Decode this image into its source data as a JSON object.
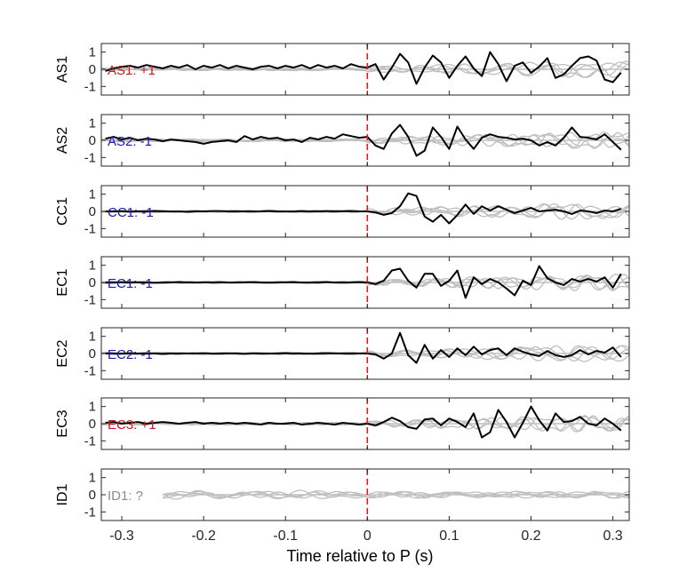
{
  "chart_data": {
    "type": "line",
    "xlabel": "Time relative to P (s)",
    "xlim": [
      -0.325,
      0.32
    ],
    "x_ticks": [
      -0.3,
      -0.2,
      -0.1,
      0,
      0.1,
      0.2,
      0.3
    ],
    "x_tick_labels": [
      "-0.3",
      "-0.2",
      "-0.1",
      "0",
      "0.1",
      "0.2",
      "0.3"
    ],
    "ylim": [
      -1.5,
      1.5
    ],
    "y_ticks": [
      1,
      0,
      -1
    ],
    "y_tick_labels": [
      "1",
      "0",
      "-1"
    ],
    "marker_x": 0,
    "colors": {
      "trace": "#000000",
      "background_traces": "#bfbfbf",
      "marker": "#e8191a",
      "plus": "#c0201e",
      "minus": "#1c1ca8",
      "unknown": "#8c8c8c"
    },
    "panels": [
      {
        "ylabel": "AS1",
        "label": "AS1: +1",
        "polarity": "plus",
        "x": [
          -0.32,
          -0.31,
          -0.3,
          -0.29,
          -0.28,
          -0.27,
          -0.26,
          -0.25,
          -0.24,
          -0.23,
          -0.22,
          -0.21,
          -0.2,
          -0.19,
          -0.18,
          -0.17,
          -0.16,
          -0.15,
          -0.14,
          -0.13,
          -0.12,
          -0.11,
          -0.1,
          -0.09,
          -0.08,
          -0.07,
          -0.06,
          -0.05,
          -0.04,
          -0.03,
          -0.02,
          -0.01,
          0,
          0.01,
          0.02,
          0.03,
          0.04,
          0.05,
          0.06,
          0.07,
          0.08,
          0.09,
          0.1,
          0.11,
          0.12,
          0.13,
          0.14,
          0.15,
          0.16,
          0.17,
          0.18,
          0.19,
          0.2,
          0.21,
          0.22,
          0.23,
          0.24,
          0.25,
          0.26,
          0.27,
          0.28,
          0.29,
          0.3,
          0.31
        ],
        "y": [
          -0.1,
          0.05,
          0.15,
          0.2,
          0.1,
          0.25,
          0.15,
          0.05,
          0.2,
          0.1,
          0.25,
          0.0,
          0.2,
          0.1,
          0.25,
          0.05,
          0.2,
          0.1,
          0.0,
          0.15,
          0.2,
          0.05,
          0.2,
          0.1,
          0.25,
          0.05,
          0.25,
          0.1,
          0.2,
          0.05,
          0.3,
          0.15,
          0.1,
          0.3,
          -0.6,
          0.1,
          0.9,
          0.4,
          -0.85,
          0.1,
          0.8,
          0.4,
          -0.5,
          0.2,
          0.75,
          0.05,
          -0.4,
          1.0,
          0.3,
          -0.7,
          0.2,
          0.4,
          -0.2,
          0.15,
          0.65,
          -0.5,
          -0.3,
          0.2,
          0.65,
          0.75,
          0.5,
          -0.6,
          -0.75,
          -0.2
        ]
      },
      {
        "ylabel": "AS2",
        "label": "AS2: -1",
        "polarity": "minus",
        "x": [
          -0.32,
          -0.31,
          -0.3,
          -0.29,
          -0.28,
          -0.27,
          -0.26,
          -0.25,
          -0.24,
          -0.23,
          -0.22,
          -0.21,
          -0.2,
          -0.19,
          -0.18,
          -0.17,
          -0.16,
          -0.15,
          -0.14,
          -0.13,
          -0.12,
          -0.11,
          -0.1,
          -0.09,
          -0.08,
          -0.07,
          -0.06,
          -0.05,
          -0.04,
          -0.03,
          -0.02,
          -0.01,
          0,
          0.01,
          0.02,
          0.03,
          0.04,
          0.05,
          0.06,
          0.07,
          0.08,
          0.09,
          0.1,
          0.11,
          0.12,
          0.13,
          0.14,
          0.15,
          0.16,
          0.17,
          0.18,
          0.19,
          0.2,
          0.21,
          0.22,
          0.23,
          0.24,
          0.25,
          0.26,
          0.27,
          0.28,
          0.29,
          0.3,
          0.31
        ],
        "y": [
          0.1,
          0.2,
          0.05,
          0.15,
          0.0,
          0.1,
          0.05,
          -0.05,
          0.05,
          0.0,
          -0.05,
          -0.1,
          -0.2,
          -0.1,
          -0.05,
          0.0,
          -0.1,
          0.25,
          0.05,
          0.2,
          0.1,
          0.15,
          0.0,
          0.05,
          -0.1,
          0.15,
          0.05,
          0.2,
          0.1,
          0.35,
          0.25,
          0.15,
          0.2,
          -0.3,
          -0.5,
          0.4,
          0.9,
          0.2,
          -0.9,
          -0.6,
          0.75,
          0.2,
          -0.5,
          0.8,
          0.05,
          -0.5,
          0.15,
          0.35,
          0.2,
          0.15,
          0.05,
          0.1,
          0.0,
          -0.3,
          -0.1,
          -0.3,
          0.15,
          0.75,
          0.2,
          0.15,
          0.05,
          0.35,
          -0.1,
          -0.55
        ]
      },
      {
        "ylabel": "CC1",
        "label": "CC1: -1",
        "polarity": "minus",
        "x": [
          -0.32,
          -0.31,
          -0.3,
          -0.29,
          -0.28,
          -0.27,
          -0.26,
          -0.25,
          -0.24,
          -0.23,
          -0.22,
          -0.21,
          -0.2,
          -0.19,
          -0.18,
          -0.17,
          -0.16,
          -0.15,
          -0.14,
          -0.13,
          -0.12,
          -0.11,
          -0.1,
          -0.09,
          -0.08,
          -0.07,
          -0.06,
          -0.05,
          -0.04,
          -0.03,
          -0.02,
          -0.01,
          0,
          0.01,
          0.02,
          0.03,
          0.04,
          0.05,
          0.06,
          0.07,
          0.08,
          0.09,
          0.1,
          0.11,
          0.12,
          0.13,
          0.14,
          0.15,
          0.16,
          0.17,
          0.18,
          0.19,
          0.2,
          0.21,
          0.22,
          0.23,
          0.24,
          0.25,
          0.26,
          0.27,
          0.28,
          0.29,
          0.3,
          0.31
        ],
        "y": [
          0.0,
          0.0,
          0.0,
          -0.02,
          0.0,
          0.0,
          0.02,
          0.0,
          0.0,
          0.0,
          -0.02,
          0.0,
          0.0,
          0.02,
          0.02,
          0.0,
          0.0,
          0.0,
          0.0,
          0.0,
          0.02,
          0.0,
          0.0,
          0.0,
          0.02,
          0.0,
          0.0,
          0.02,
          0.0,
          0.0,
          0.02,
          0.0,
          0.0,
          -0.05,
          -0.2,
          -0.1,
          0.3,
          1.05,
          0.9,
          -0.3,
          -0.6,
          -0.2,
          -0.7,
          -0.2,
          0.4,
          -0.15,
          0.3,
          0.05,
          0.3,
          0.1,
          -0.1,
          0.05,
          0.2,
          0.0,
          0.05,
          0.1,
          0.0,
          -0.15,
          0.05,
          0.0,
          -0.1,
          0.05,
          0.0,
          0.15
        ]
      },
      {
        "ylabel": "EC1",
        "label": "EC1: -1",
        "polarity": "minus",
        "x": [
          -0.32,
          -0.31,
          -0.3,
          -0.29,
          -0.28,
          -0.27,
          -0.26,
          -0.25,
          -0.24,
          -0.23,
          -0.22,
          -0.21,
          -0.2,
          -0.19,
          -0.18,
          -0.17,
          -0.16,
          -0.15,
          -0.14,
          -0.13,
          -0.12,
          -0.11,
          -0.1,
          -0.09,
          -0.08,
          -0.07,
          -0.06,
          -0.05,
          -0.04,
          -0.03,
          -0.02,
          -0.01,
          0,
          0.01,
          0.02,
          0.03,
          0.04,
          0.05,
          0.06,
          0.07,
          0.08,
          0.09,
          0.1,
          0.11,
          0.12,
          0.13,
          0.14,
          0.15,
          0.16,
          0.17,
          0.18,
          0.19,
          0.2,
          0.21,
          0.22,
          0.23,
          0.24,
          0.25,
          0.26,
          0.27,
          0.28,
          0.29,
          0.3,
          0.31
        ],
        "y": [
          0.0,
          0.0,
          0.02,
          0.0,
          0.0,
          0.0,
          -0.02,
          0.0,
          0.0,
          0.02,
          0.0,
          0.0,
          0.0,
          0.0,
          0.02,
          0.0,
          0.0,
          0.0,
          0.02,
          0.0,
          0.0,
          0.0,
          0.0,
          0.02,
          0.0,
          0.0,
          0.0,
          0.02,
          0.0,
          0.0,
          0.0,
          0.02,
          0.0,
          -0.1,
          0.1,
          0.7,
          0.8,
          0.1,
          -0.3,
          0.5,
          0.5,
          -0.2,
          0.1,
          0.7,
          -0.9,
          0.3,
          -0.1,
          0.2,
          0.0,
          -0.35,
          -0.75,
          0.1,
          -0.15,
          0.95,
          0.25,
          0.0,
          -0.15,
          0.2,
          0.05,
          0.2,
          0.05,
          0.3,
          -0.3,
          0.5
        ]
      },
      {
        "ylabel": "EC2",
        "label": "EC2: -1",
        "polarity": "minus",
        "x": [
          -0.32,
          -0.31,
          -0.3,
          -0.29,
          -0.28,
          -0.27,
          -0.26,
          -0.25,
          -0.24,
          -0.23,
          -0.22,
          -0.21,
          -0.2,
          -0.19,
          -0.18,
          -0.17,
          -0.16,
          -0.15,
          -0.14,
          -0.13,
          -0.12,
          -0.11,
          -0.1,
          -0.09,
          -0.08,
          -0.07,
          -0.06,
          -0.05,
          -0.04,
          -0.03,
          -0.02,
          -0.01,
          0,
          0.01,
          0.02,
          0.03,
          0.04,
          0.05,
          0.06,
          0.07,
          0.08,
          0.09,
          0.1,
          0.11,
          0.12,
          0.13,
          0.14,
          0.15,
          0.16,
          0.17,
          0.18,
          0.19,
          0.2,
          0.21,
          0.22,
          0.23,
          0.24,
          0.25,
          0.26,
          0.27,
          0.28,
          0.29,
          0.3,
          0.31
        ],
        "y": [
          0.0,
          0.0,
          0.0,
          0.02,
          0.0,
          0.0,
          0.0,
          -0.02,
          0.0,
          0.0,
          0.0,
          0.0,
          0.02,
          0.0,
          0.0,
          0.0,
          0.0,
          -0.02,
          0.0,
          0.0,
          0.0,
          0.0,
          0.02,
          0.0,
          0.0,
          0.0,
          0.0,
          0.02,
          0.0,
          0.0,
          0.0,
          0.0,
          0.0,
          -0.05,
          -0.3,
          0.0,
          1.2,
          -0.1,
          -0.55,
          0.5,
          -0.3,
          0.2,
          -0.2,
          0.3,
          -0.1,
          0.4,
          -0.05,
          0.2,
          0.3,
          -0.1,
          0.3,
          0.1,
          -0.05,
          -0.15,
          0.15,
          -0.1,
          -0.2,
          -0.1,
          0.2,
          -0.05,
          0.15,
          0.05,
          0.35,
          -0.2
        ]
      },
      {
        "ylabel": "EC3",
        "label": "EC3: +1",
        "polarity": "plus",
        "x": [
          -0.32,
          -0.31,
          -0.3,
          -0.29,
          -0.28,
          -0.27,
          -0.26,
          -0.25,
          -0.24,
          -0.23,
          -0.22,
          -0.21,
          -0.2,
          -0.19,
          -0.18,
          -0.17,
          -0.16,
          -0.15,
          -0.14,
          -0.13,
          -0.12,
          -0.11,
          -0.1,
          -0.09,
          -0.08,
          -0.07,
          -0.06,
          -0.05,
          -0.04,
          -0.03,
          -0.02,
          -0.01,
          0,
          0.01,
          0.02,
          0.03,
          0.04,
          0.05,
          0.06,
          0.07,
          0.08,
          0.09,
          0.1,
          0.11,
          0.12,
          0.13,
          0.14,
          0.15,
          0.16,
          0.17,
          0.18,
          0.19,
          0.2,
          0.21,
          0.22,
          0.23,
          0.24,
          0.25,
          0.26,
          0.27,
          0.28,
          0.29,
          0.3,
          0.31
        ],
        "y": [
          0.05,
          0.1,
          0.0,
          0.05,
          0.1,
          0.0,
          0.05,
          0.1,
          0.05,
          0.0,
          0.05,
          0.1,
          0.0,
          0.05,
          0.0,
          0.05,
          0.0,
          0.05,
          0.0,
          -0.05,
          0.05,
          0.0,
          0.0,
          0.05,
          -0.05,
          0.0,
          0.05,
          0.0,
          -0.05,
          0.05,
          0.0,
          -0.05,
          0.0,
          -0.1,
          0.1,
          0.35,
          0.15,
          -0.2,
          -0.3,
          0.25,
          0.3,
          -0.1,
          0.3,
          0.1,
          -0.2,
          0.6,
          -0.8,
          -0.5,
          0.8,
          0.1,
          -0.8,
          0.05,
          1.0,
          0.2,
          -0.4,
          0.6,
          0.1,
          0.15,
          0.4,
          0.0,
          -0.1,
          0.3,
          0.0,
          -0.4
        ]
      },
      {
        "ylabel": "ID1",
        "label": "ID1: ?",
        "polarity": "unknown",
        "x": [],
        "y": []
      }
    ]
  }
}
